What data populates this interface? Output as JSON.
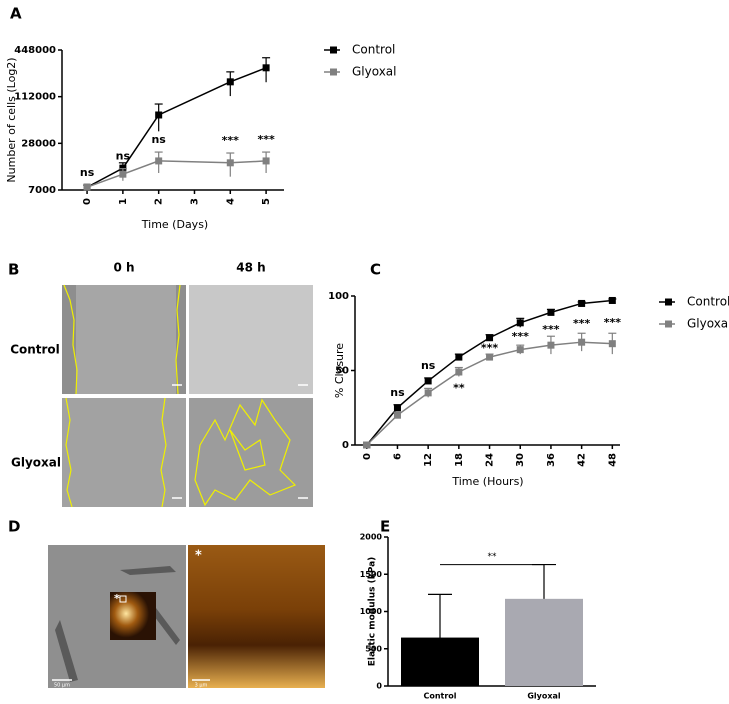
{
  "panel_labels": [
    "A",
    "B",
    "C",
    "D",
    "E"
  ],
  "chart_data": [
    {
      "type": "line",
      "ylabel": "Number of cells (Log2)",
      "xlabel": "Time (Days)",
      "log_scale": "y",
      "xlim": [
        -0.7,
        5.5
      ],
      "xticks": [
        0,
        1,
        2,
        3,
        4,
        5
      ],
      "ylim": [
        7000,
        448000
      ],
      "yticks": [
        7000,
        28000,
        112000,
        448000
      ],
      "series": [
        {
          "name": "Control",
          "color": "#000000",
          "x": [
            0,
            1,
            2,
            4,
            5
          ],
          "values": [
            7600,
            13400,
            65000,
            174000,
            264000
          ],
          "errors": [
            500,
            2300,
            25000,
            60000,
            92000
          ]
        },
        {
          "name": "Glyoxal",
          "color": "#808080",
          "x": [
            0,
            1,
            2,
            4,
            5
          ],
          "values": [
            7600,
            11200,
            16600,
            15700,
            16600
          ],
          "errors": [
            500,
            2000,
            5000,
            5300,
            5000
          ]
        }
      ],
      "annotations": [
        {
          "x": 0,
          "text": "ns"
        },
        {
          "x": 1,
          "text": "ns"
        },
        {
          "x": 2,
          "text": "ns"
        },
        {
          "x": 4,
          "text": "***"
        },
        {
          "x": 5,
          "text": "***"
        }
      ]
    },
    {
      "type": "line",
      "ylabel": "% Closure",
      "xlabel": "Time (Hours)",
      "xlim": [
        -2.3,
        49.5
      ],
      "xticks": [
        0,
        6,
        12,
        18,
        24,
        30,
        36,
        42,
        48
      ],
      "ylim": [
        0,
        100
      ],
      "yticks": [
        0,
        50,
        100
      ],
      "series": [
        {
          "name": "Control",
          "color": "#000000",
          "x": [
            0,
            6,
            12,
            18,
            24,
            30,
            36,
            42,
            48
          ],
          "values": [
            0,
            25,
            43,
            59,
            72,
            82,
            89,
            95,
            97
          ],
          "errors": [
            0,
            2,
            2,
            2,
            2,
            3,
            2,
            1,
            1
          ]
        },
        {
          "name": "Glyoxal",
          "color": "#808080",
          "x": [
            0,
            6,
            12,
            18,
            24,
            30,
            36,
            42,
            48
          ],
          "values": [
            0,
            20,
            35,
            49,
            59,
            64,
            67,
            69,
            68
          ],
          "errors": [
            0,
            2,
            3,
            3,
            2,
            3,
            6,
            6,
            7
          ]
        }
      ],
      "annotations": [
        {
          "x": 6,
          "text": "ns"
        },
        {
          "x": 12,
          "text": "ns"
        },
        {
          "x": 18,
          "text": "**"
        },
        {
          "x": 24,
          "text": "***"
        },
        {
          "x": 30,
          "text": "***"
        },
        {
          "x": 36,
          "text": "***"
        },
        {
          "x": 42,
          "text": "***"
        },
        {
          "x": 48,
          "text": "***"
        }
      ]
    },
    {
      "type": "bar",
      "ylabel": "Elastic modulus (kPa)",
      "categories": [
        "Control",
        "Glyoxal"
      ],
      "values": [
        650,
        1170
      ],
      "errors": [
        580,
        460
      ],
      "colors": [
        "#000000",
        "#a9a9b1"
      ],
      "ylim": [
        0,
        2000
      ],
      "yticks": [
        0,
        500,
        1000,
        1500,
        2000
      ],
      "significance": "**"
    }
  ],
  "panel_b": {
    "columns": [
      "0 h",
      "48 h"
    ],
    "rows": [
      "Control",
      "Glyoxal"
    ]
  },
  "panel_d": {
    "scale_bars": [
      "50 μm",
      "3 μm"
    ],
    "markers": [
      "*",
      "*"
    ]
  }
}
